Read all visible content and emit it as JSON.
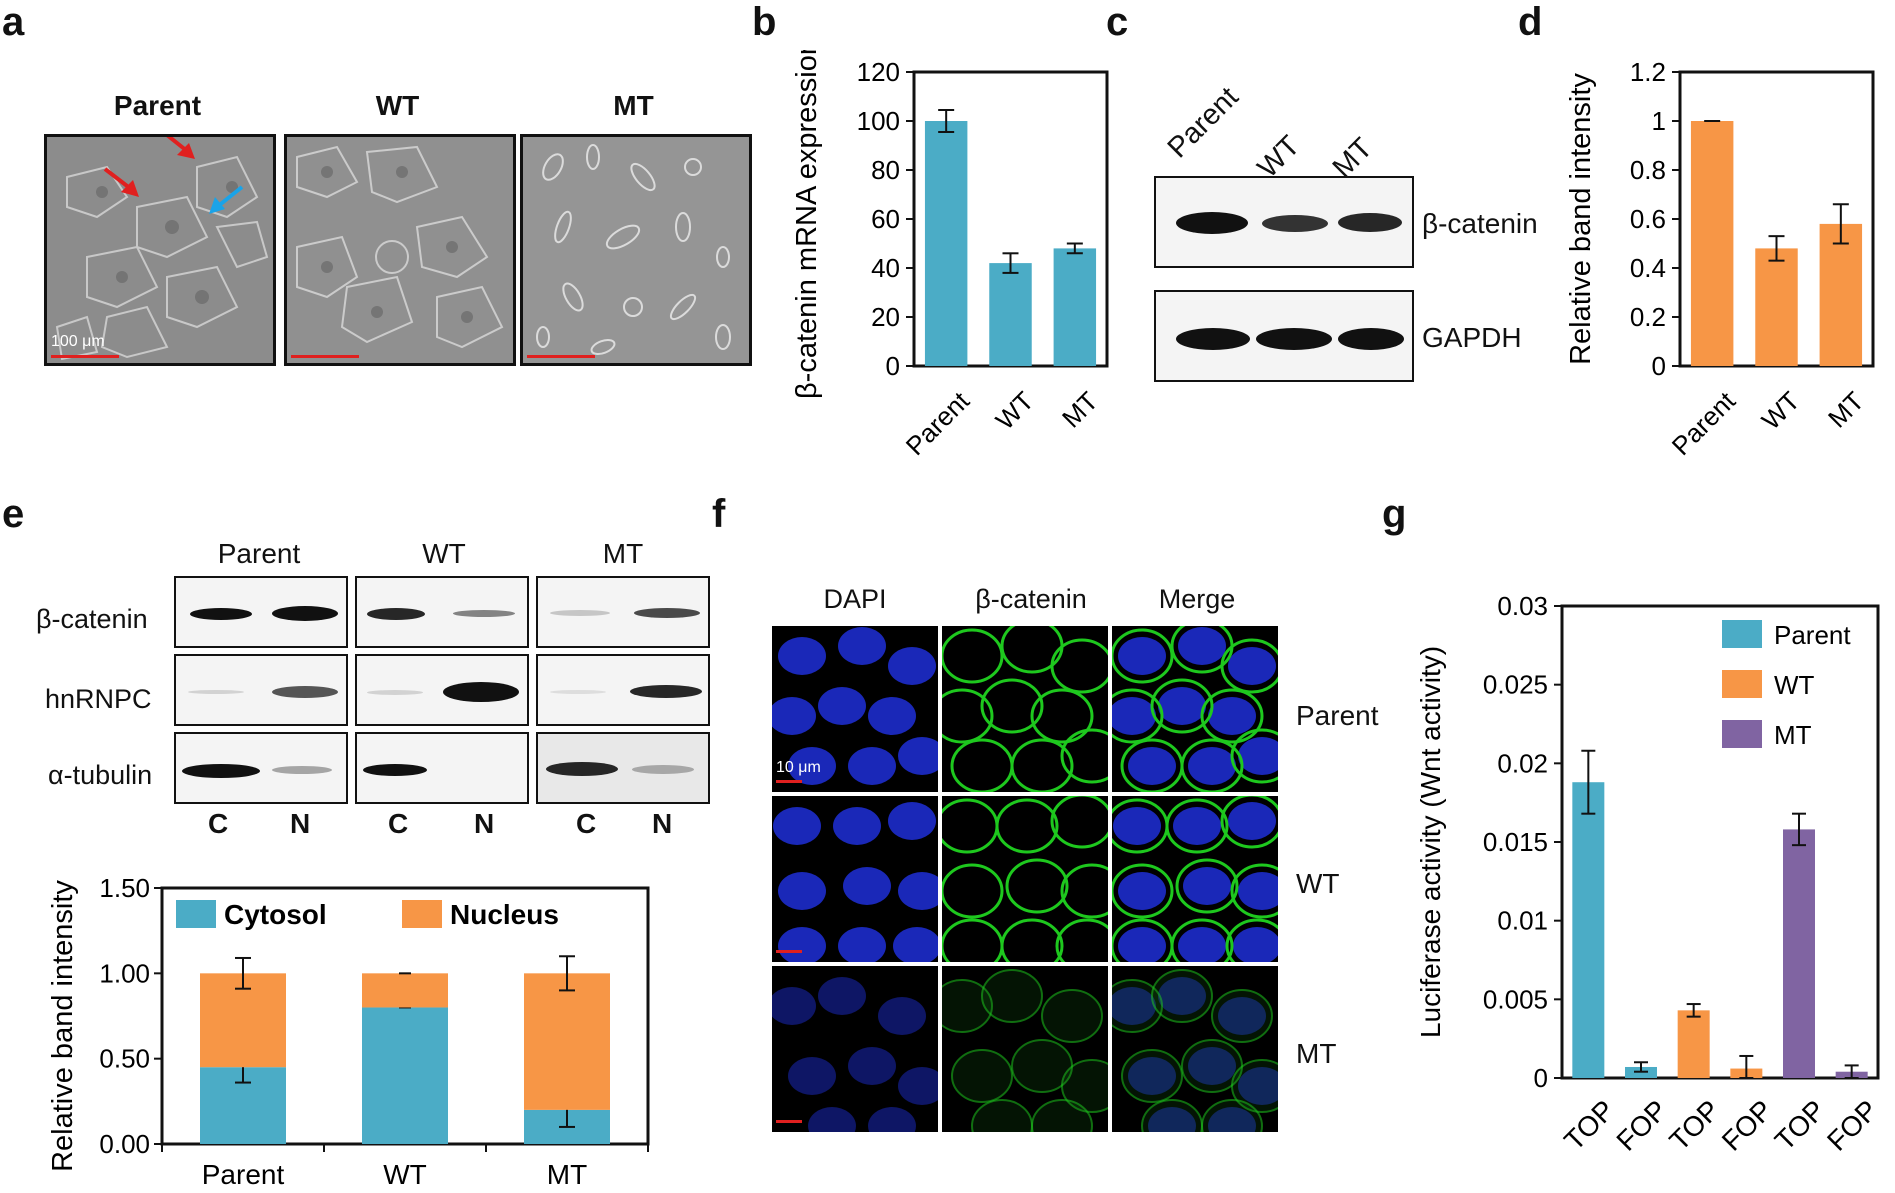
{
  "panels": {
    "a": "a",
    "b": "b",
    "c": "c",
    "d": "d",
    "e": "e",
    "f": "f",
    "g": "g"
  },
  "panel_a": {
    "titles": [
      "Parent",
      "WT",
      "MT"
    ],
    "scale_bar_label": "100 μm",
    "arrow_colors": {
      "red": "#e0201f",
      "blue": "#1aa3e8"
    }
  },
  "panel_c": {
    "lanes": [
      "Parent",
      "WT",
      "MT"
    ],
    "rows": [
      "β-catenin",
      "GAPDH"
    ],
    "band_intensity": {
      "β-catenin": [
        1.0,
        0.48,
        0.58
      ],
      "GAPDH": [
        1,
        1,
        1
      ]
    }
  },
  "panel_e": {
    "groups": [
      "Parent",
      "WT",
      "MT"
    ],
    "rows": [
      "β-catenin",
      "hnRNPC",
      "α-tubulin"
    ],
    "fractions": [
      "C",
      "N"
    ]
  },
  "panel_f": {
    "columns": [
      "DAPI",
      "β-catenin",
      "Merge"
    ],
    "rows": [
      "Parent",
      "WT",
      "MT"
    ],
    "scale_bar_label": "10 μm"
  },
  "colors": {
    "teal": "#4bacc6",
    "orange": "#f79646",
    "purple": "#8064a2",
    "green": "#1ec81e",
    "blue_nuclei": "#1f2fd8",
    "red_scale": "#e0201f"
  },
  "chart_data": [
    {
      "panel": "b",
      "type": "bar",
      "categories": [
        "Parent",
        "WT",
        "MT"
      ],
      "values": [
        100,
        42,
        48
      ],
      "errors": [
        4.5,
        4,
        2
      ],
      "ylabel": "β-catenin mRNA expression",
      "ylim": [
        0,
        120
      ],
      "yticks": [
        "0",
        "20",
        "40",
        "60",
        "80",
        "100",
        "120"
      ],
      "color": "#4bacc6"
    },
    {
      "panel": "d",
      "type": "bar",
      "categories": [
        "Parent",
        "WT",
        "MT"
      ],
      "values": [
        1.0,
        0.48,
        0.58
      ],
      "errors": [
        0.0,
        0.05,
        0.08
      ],
      "ylabel": "Relative band intensity",
      "ylim": [
        0,
        1.2
      ],
      "yticks": [
        "0",
        "0.2",
        "0.4",
        "0.6",
        "0.8",
        "1",
        "1.2"
      ],
      "color": "#f79646"
    },
    {
      "panel": "e",
      "type": "bar",
      "stacked": true,
      "categories": [
        "Parent",
        "WT",
        "MT"
      ],
      "series": [
        {
          "name": "Cytosol",
          "values": [
            0.45,
            0.8,
            0.2
          ],
          "errors": [
            0.09,
            0.0,
            0.1
          ],
          "color": "#4bacc6"
        },
        {
          "name": "Nucleus",
          "values": [
            0.55,
            0.2,
            0.8
          ],
          "errors": [
            0.09,
            0.0,
            0.1
          ],
          "color": "#f79646"
        }
      ],
      "ylabel": "Relative band intensity",
      "ylim": [
        0,
        1.5
      ],
      "yticks": [
        "0.00",
        "0.50",
        "1.00",
        "1.50"
      ],
      "legend": "top"
    },
    {
      "panel": "g",
      "type": "bar",
      "categories": [
        "TOP",
        "FOP",
        "TOP",
        "FOP",
        "TOP",
        "FOP"
      ],
      "values": [
        0.0188,
        0.0007,
        0.0043,
        0.0006,
        0.0158,
        0.0004
      ],
      "errors": [
        0.002,
        0.0003,
        0.0004,
        0.0008,
        0.001,
        0.0004
      ],
      "group_of_bar": [
        "Parent",
        "Parent",
        "WT",
        "WT",
        "MT",
        "MT"
      ],
      "series": [
        {
          "name": "Parent",
          "color": "#4bacc6"
        },
        {
          "name": "WT",
          "color": "#f79646"
        },
        {
          "name": "MT",
          "color": "#8064a2"
        }
      ],
      "ylabel": "Luciferase activity (Wnt activity)",
      "ylim": [
        0,
        0.03
      ],
      "yticks": [
        "0",
        "0.005",
        "0.01",
        "0.015",
        "0.02",
        "0.025",
        "0.03"
      ],
      "legend": "top-right"
    }
  ]
}
